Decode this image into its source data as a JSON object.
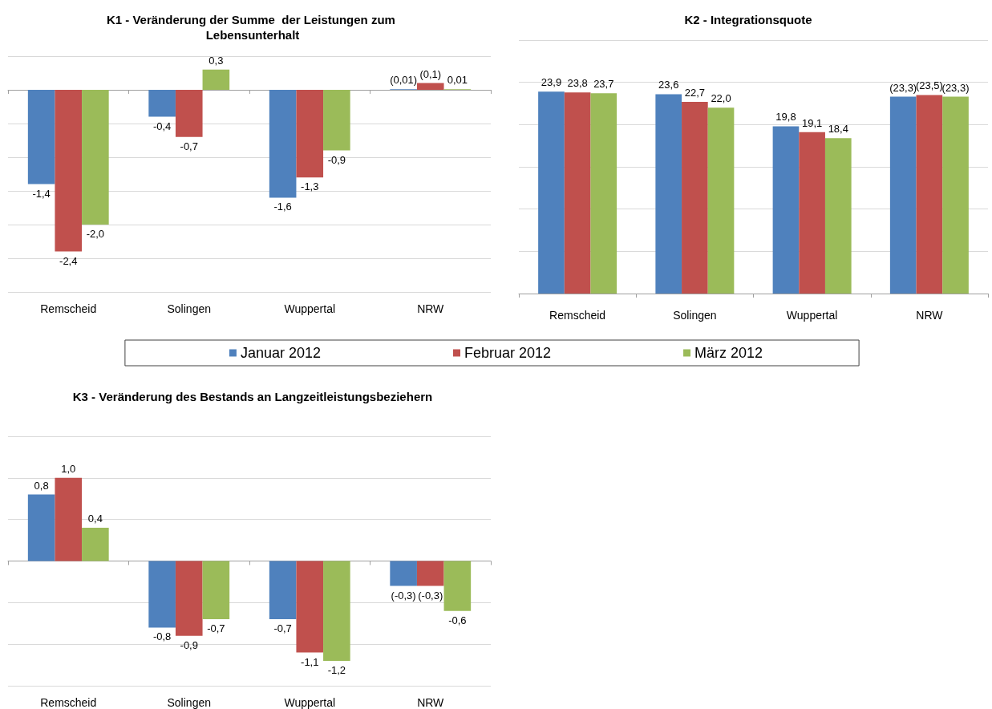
{
  "chart_data": [
    {
      "type": "bar",
      "title": "K1 - Veränderung der Summe  der Leistungen zum Lebensunterhalt",
      "categories": [
        "Remscheid",
        "Solingen",
        "Wuppertal",
        "NRW"
      ],
      "series": [
        {
          "name": "Januar 2012",
          "color": "#4f81bd",
          "values": [
            -1.4,
            -0.4,
            -1.6,
            0.01
          ],
          "value_labels": [
            "-1,4",
            "-0,4",
            "-1,6",
            "(0,01)"
          ]
        },
        {
          "name": "Februar 2012",
          "color": "#c0504d",
          "values": [
            -2.4,
            -0.7,
            -1.3,
            0.1
          ],
          "value_labels": [
            "-2,4",
            "-0,7",
            "-1,3",
            "(0,1)"
          ]
        },
        {
          "name": "März 2012",
          "color": "#9bbb59",
          "values": [
            -2.0,
            0.3,
            -0.9,
            0.01
          ],
          "value_labels": [
            "-2,0",
            "0,3",
            "-0,9",
            "0,01"
          ]
        }
      ],
      "ylim": [
        -3,
        0.5
      ],
      "yticks": [
        {
          "value": -3,
          "label": null
        },
        {
          "value": -2.5,
          "label": null
        },
        {
          "value": -2,
          "label": null
        },
        {
          "value": -1.5,
          "label": null
        },
        {
          "value": -1,
          "label": null
        },
        {
          "value": -0.5,
          "label": null
        },
        {
          "value": 0,
          "label": null
        },
        {
          "value": 0.5,
          "label": null
        }
      ],
      "tick_labels": "x",
      "grid": "y",
      "legend": "bottom"
    },
    {
      "type": "bar",
      "title": "K2 - Integrationsquote",
      "categories": [
        "Remscheid",
        "Solingen",
        "Wuppertal",
        "NRW"
      ],
      "series": [
        {
          "color": "#4f81bd",
          "values": [
            23.9,
            23.6,
            19.8,
            23.3
          ],
          "value_labels": [
            "23,9",
            "23,6",
            "19,8",
            "(23,3)"
          ]
        },
        {
          "color": "#c0504d",
          "values": [
            23.8,
            22.7,
            19.1,
            23.5
          ],
          "value_labels": [
            "23,8",
            "22,7",
            "19,1",
            "(23,5)"
          ]
        },
        {
          "color": "#9bbb59",
          "values": [
            23.7,
            22.0,
            18.4,
            23.3
          ],
          "value_labels": [
            "23,7",
            "22,0",
            "18,4",
            "(23,3)"
          ]
        }
      ],
      "ylim": [
        0,
        30
      ],
      "yticks": [
        {
          "value": 0,
          "label": null
        },
        {
          "value": 5,
          "label": null
        },
        {
          "value": 10,
          "label": null
        },
        {
          "value": 15,
          "label": null
        },
        {
          "value": 20,
          "label": null
        },
        {
          "value": 25,
          "label": null
        },
        {
          "value": 30,
          "label": null
        }
      ],
      "tick_labels": "x",
      "grid": "y"
    },
    {
      "type": "bar",
      "title": "K3 - Veränderung des Bestands an Langzeitleistungsbeziehern",
      "categories": [
        "Remscheid",
        "Solingen",
        "Wuppertal",
        "NRW"
      ],
      "series": [
        {
          "color": "#4f81bd",
          "values": [
            0.8,
            -0.8,
            -0.7,
            -0.3
          ],
          "value_labels": [
            "0,8",
            "-0,8",
            "-0,7",
            "(-0,3)"
          ]
        },
        {
          "color": "#c0504d",
          "values": [
            1.0,
            -0.9,
            -1.1,
            -0.3
          ],
          "value_labels": [
            "1,0",
            "-0,9",
            "-1,1",
            "(-0,3)"
          ]
        },
        {
          "color": "#9bbb59",
          "values": [
            0.4,
            -0.7,
            -1.2,
            -0.6
          ],
          "value_labels": [
            "0,4",
            "-0,7",
            "-1,2",
            "-0,6"
          ]
        }
      ],
      "ylim": [
        -1.5,
        1.5
      ],
      "yticks": [
        {
          "value": -1.5,
          "label": null
        },
        {
          "value": -1,
          "label": null
        },
        {
          "value": -0.5,
          "label": null
        },
        {
          "value": 0,
          "label": null
        },
        {
          "value": 0.5,
          "label": null
        },
        {
          "value": 1,
          "label": null
        },
        {
          "value": 1.5,
          "label": null
        }
      ],
      "tick_labels": "x",
      "grid": "y"
    }
  ]
}
